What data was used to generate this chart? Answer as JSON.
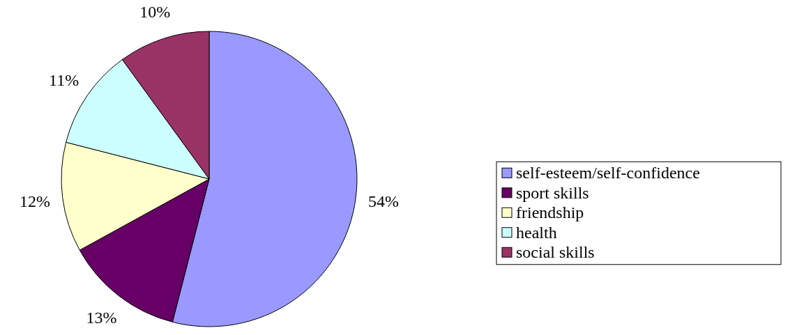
{
  "chart_data": {
    "type": "pie",
    "categories": [
      "self-esteem/self-confidence",
      "sport skills",
      "friendship",
      "health",
      "social skills"
    ],
    "values": [
      54,
      13,
      12,
      11,
      10
    ],
    "colors": [
      "#9999ff",
      "#660066",
      "#ffffcc",
      "#ccffff",
      "#993366"
    ],
    "value_labels": [
      "54%",
      "13%",
      "12%",
      "11%",
      "10%"
    ],
    "legend": "right"
  }
}
